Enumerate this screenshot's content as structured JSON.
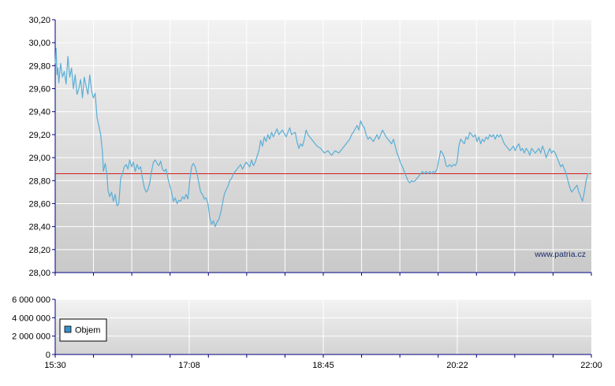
{
  "chart_data": [
    {
      "type": "line",
      "name": "price",
      "yticks": [
        "30,20",
        "30,00",
        "29,80",
        "29,60",
        "29,40",
        "29,20",
        "29,00",
        "28,80",
        "28,60",
        "28,40",
        "28,20",
        "28,00"
      ],
      "ylim": [
        28.0,
        30.2
      ],
      "reference_line": 28.86,
      "watermark": "www.patria.cz",
      "grid": true,
      "series": [
        {
          "color": "#5aaed6",
          "points": [
            [
              0,
              29.82
            ],
            [
              0.5,
              29.95
            ],
            [
              1,
              29.72
            ],
            [
              1.5,
              29.78
            ],
            [
              2,
              29.65
            ],
            [
              3,
              29.82
            ],
            [
              4,
              29.7
            ],
            [
              5,
              29.75
            ],
            [
              6,
              29.64
            ],
            [
              7,
              29.88
            ],
            [
              8,
              29.7
            ],
            [
              9,
              29.78
            ],
            [
              10,
              29.6
            ],
            [
              11,
              29.72
            ],
            [
              12,
              29.55
            ],
            [
              13,
              29.6
            ],
            [
              14,
              29.68
            ],
            [
              15,
              29.52
            ],
            [
              16,
              29.7
            ],
            [
              17,
              29.62
            ],
            [
              18,
              29.55
            ],
            [
              19,
              29.72
            ],
            [
              20,
              29.58
            ],
            [
              21,
              29.52
            ],
            [
              22,
              29.56
            ],
            [
              23,
              29.35
            ],
            [
              24,
              29.28
            ],
            [
              25,
              29.2
            ],
            [
              26,
              29.05
            ],
            [
              26.5,
              28.88
            ],
            [
              27.5,
              28.95
            ],
            [
              28.5,
              28.85
            ],
            [
              29,
              28.72
            ],
            [
              30,
              28.66
            ],
            [
              31,
              28.7
            ],
            [
              32,
              28.62
            ],
            [
              33,
              28.68
            ],
            [
              34,
              28.58
            ],
            [
              35,
              28.6
            ],
            [
              36,
              28.82
            ],
            [
              37,
              28.86
            ],
            [
              38,
              28.92
            ],
            [
              39,
              28.94
            ],
            [
              40,
              28.9
            ],
            [
              41,
              28.98
            ],
            [
              42,
              28.92
            ],
            [
              43,
              28.96
            ],
            [
              44,
              28.88
            ],
            [
              45,
              28.94
            ],
            [
              46,
              28.9
            ],
            [
              47,
              28.92
            ],
            [
              48,
              28.82
            ],
            [
              49,
              28.74
            ],
            [
              50,
              28.7
            ],
            [
              51,
              28.72
            ],
            [
              52,
              28.78
            ],
            [
              53,
              28.88
            ],
            [
              54,
              28.96
            ],
            [
              55,
              28.98
            ],
            [
              56,
              28.95
            ],
            [
              57,
              28.93
            ],
            [
              58,
              28.97
            ],
            [
              59,
              28.9
            ],
            [
              60,
              28.88
            ],
            [
              61,
              28.9
            ],
            [
              62,
              28.82
            ],
            [
              63,
              28.76
            ],
            [
              64,
              28.7
            ],
            [
              65,
              28.62
            ],
            [
              66,
              28.65
            ],
            [
              67,
              28.6
            ],
            [
              68,
              28.63
            ],
            [
              69,
              28.62
            ],
            [
              70,
              28.66
            ],
            [
              71,
              28.64
            ],
            [
              72,
              28.68
            ],
            [
              73,
              28.64
            ],
            [
              74,
              28.8
            ],
            [
              75,
              28.92
            ],
            [
              76,
              28.95
            ],
            [
              77,
              28.92
            ],
            [
              78,
              28.86
            ],
            [
              79,
              28.78
            ],
            [
              80,
              28.7
            ],
            [
              81,
              28.68
            ],
            [
              82,
              28.64
            ],
            [
              83,
              28.65
            ],
            [
              84,
              28.6
            ],
            [
              85,
              28.48
            ],
            [
              86,
              28.42
            ],
            [
              87,
              28.45
            ],
            [
              88,
              28.4
            ],
            [
              89,
              28.44
            ],
            [
              90,
              28.46
            ],
            [
              91,
              28.52
            ],
            [
              92,
              28.6
            ],
            [
              93,
              28.68
            ],
            [
              94,
              28.72
            ],
            [
              95,
              28.75
            ],
            [
              96,
              28.8
            ],
            [
              97,
              28.82
            ],
            [
              98,
              28.86
            ],
            [
              100,
              28.9
            ],
            [
              102,
              28.94
            ],
            [
              103,
              28.9
            ],
            [
              105,
              28.96
            ],
            [
              107,
              28.92
            ],
            [
              108,
              28.98
            ],
            [
              109,
              28.93
            ],
            [
              110,
              28.96
            ],
            [
              112,
              29.06
            ],
            [
              113,
              29.15
            ],
            [
              114,
              29.1
            ],
            [
              115,
              29.18
            ],
            [
              116,
              29.14
            ],
            [
              117,
              29.2
            ],
            [
              118,
              29.16
            ],
            [
              119,
              29.22
            ],
            [
              120,
              29.18
            ],
            [
              122,
              29.25
            ],
            [
              123,
              29.2
            ],
            [
              125,
              29.24
            ],
            [
              127,
              29.18
            ],
            [
              129,
              29.26
            ],
            [
              130,
              29.2
            ],
            [
              132,
              29.22
            ],
            [
              133,
              29.14
            ],
            [
              134,
              29.08
            ],
            [
              135,
              29.12
            ],
            [
              136,
              29.1
            ],
            [
              137,
              29.16
            ],
            [
              138,
              29.24
            ],
            [
              139,
              29.2
            ],
            [
              140,
              29.18
            ],
            [
              142,
              29.14
            ],
            [
              144,
              29.1
            ],
            [
              146,
              29.08
            ],
            [
              148,
              29.04
            ],
            [
              150,
              29.06
            ],
            [
              152,
              29.02
            ],
            [
              154,
              29.06
            ],
            [
              156,
              29.04
            ],
            [
              158,
              29.08
            ],
            [
              160,
              29.12
            ],
            [
              162,
              29.16
            ],
            [
              163,
              29.2
            ],
            [
              164,
              29.22
            ],
            [
              166,
              29.28
            ],
            [
              167,
              29.24
            ],
            [
              168,
              29.32
            ],
            [
              169,
              29.28
            ],
            [
              170,
              29.26
            ],
            [
              171,
              29.2
            ],
            [
              172,
              29.16
            ],
            [
              173,
              29.18
            ],
            [
              175,
              29.14
            ],
            [
              177,
              29.2
            ],
            [
              178,
              29.16
            ],
            [
              180,
              29.24
            ],
            [
              182,
              29.18
            ],
            [
              184,
              29.14
            ],
            [
              185,
              29.12
            ],
            [
              186,
              29.16
            ],
            [
              187,
              29.1
            ],
            [
              188,
              29.04
            ],
            [
              189,
              29.0
            ],
            [
              190,
              28.95
            ],
            [
              191,
              28.92
            ],
            [
              192,
              28.88
            ],
            [
              193,
              28.84
            ],
            [
              194,
              28.8
            ],
            [
              195,
              28.78
            ],
            [
              196,
              28.8
            ],
            [
              197,
              28.79
            ],
            [
              198,
              28.8
            ],
            [
              199,
              28.82
            ],
            [
              200,
              28.84
            ],
            [
              201,
              28.86
            ],
            [
              202,
              28.88
            ],
            [
              203,
              28.86
            ],
            [
              204,
              28.88
            ],
            [
              205,
              28.86
            ],
            [
              206,
              28.88
            ],
            [
              207,
              28.86
            ],
            [
              208,
              28.88
            ],
            [
              209,
              28.87
            ],
            [
              210,
              28.9
            ],
            [
              211,
              28.98
            ],
            [
              212,
              29.06
            ],
            [
              213,
              29.04
            ],
            [
              214,
              29.0
            ],
            [
              215,
              28.93
            ],
            [
              216,
              28.92
            ],
            [
              217,
              28.94
            ],
            [
              218,
              28.92
            ],
            [
              219,
              28.94
            ],
            [
              220,
              28.93
            ],
            [
              221,
              28.96
            ],
            [
              222,
              29.1
            ],
            [
              223,
              29.16
            ],
            [
              224,
              29.14
            ],
            [
              225,
              29.12
            ],
            [
              226,
              29.18
            ],
            [
              227,
              29.16
            ],
            [
              228,
              29.22
            ],
            [
              229,
              29.2
            ],
            [
              230,
              29.18
            ],
            [
              231,
              29.2
            ],
            [
              232,
              29.14
            ],
            [
              233,
              29.18
            ],
            [
              234,
              29.12
            ],
            [
              235,
              29.16
            ],
            [
              236,
              29.14
            ],
            [
              237,
              29.18
            ],
            [
              238,
              29.16
            ],
            [
              239,
              29.2
            ],
            [
              240,
              29.18
            ],
            [
              241,
              29.2
            ],
            [
              242,
              29.16
            ],
            [
              243,
              29.2
            ],
            [
              244,
              29.18
            ],
            [
              245,
              29.2
            ],
            [
              246,
              29.16
            ],
            [
              247,
              29.12
            ],
            [
              248,
              29.1
            ],
            [
              249,
              29.08
            ],
            [
              250,
              29.06
            ],
            [
              251,
              29.08
            ],
            [
              252,
              29.1
            ],
            [
              253,
              29.06
            ],
            [
              254,
              29.1
            ],
            [
              255,
              29.12
            ],
            [
              256,
              29.06
            ],
            [
              257,
              29.08
            ],
            [
              258,
              29.04
            ],
            [
              259,
              29.08
            ],
            [
              260,
              29.06
            ],
            [
              261,
              29.02
            ],
            [
              262,
              29.08
            ],
            [
              263,
              29.06
            ],
            [
              264,
              29.04
            ],
            [
              265,
              29.06
            ],
            [
              266,
              29.08
            ],
            [
              267,
              29.04
            ],
            [
              268,
              29.1
            ],
            [
              269,
              29.06
            ],
            [
              270,
              29.0
            ],
            [
              271,
              29.04
            ],
            [
              272,
              29.08
            ],
            [
              273,
              29.04
            ],
            [
              274,
              29.06
            ],
            [
              275,
              29.04
            ],
            [
              276,
              29.0
            ],
            [
              277,
              28.96
            ],
            [
              278,
              28.92
            ],
            [
              279,
              28.94
            ],
            [
              280,
              28.9
            ],
            [
              281,
              28.86
            ],
            [
              282,
              28.8
            ],
            [
              283,
              28.74
            ],
            [
              284,
              28.7
            ],
            [
              285,
              28.72
            ],
            [
              286,
              28.74
            ],
            [
              287,
              28.76
            ],
            [
              288,
              28.7
            ],
            [
              289,
              28.66
            ],
            [
              290,
              28.62
            ],
            [
              291,
              28.7
            ],
            [
              292,
              28.8
            ],
            [
              293,
              28.86
            ],
            [
              294,
              28.86
            ]
          ]
        }
      ]
    },
    {
      "type": "bar",
      "name": "volume",
      "yticks": [
        "6 000 000",
        "4 000 000",
        "2 000 000",
        "0"
      ],
      "ylim": [
        0,
        6000000
      ],
      "xticks": [
        "15:30",
        "17:08",
        "18:45",
        "20:22",
        "22:00"
      ],
      "legend": {
        "label": "Objem",
        "color": "#3a8fc8",
        "position": "top-left"
      },
      "series": [
        {
          "name": "Objem",
          "values": []
        }
      ]
    }
  ]
}
